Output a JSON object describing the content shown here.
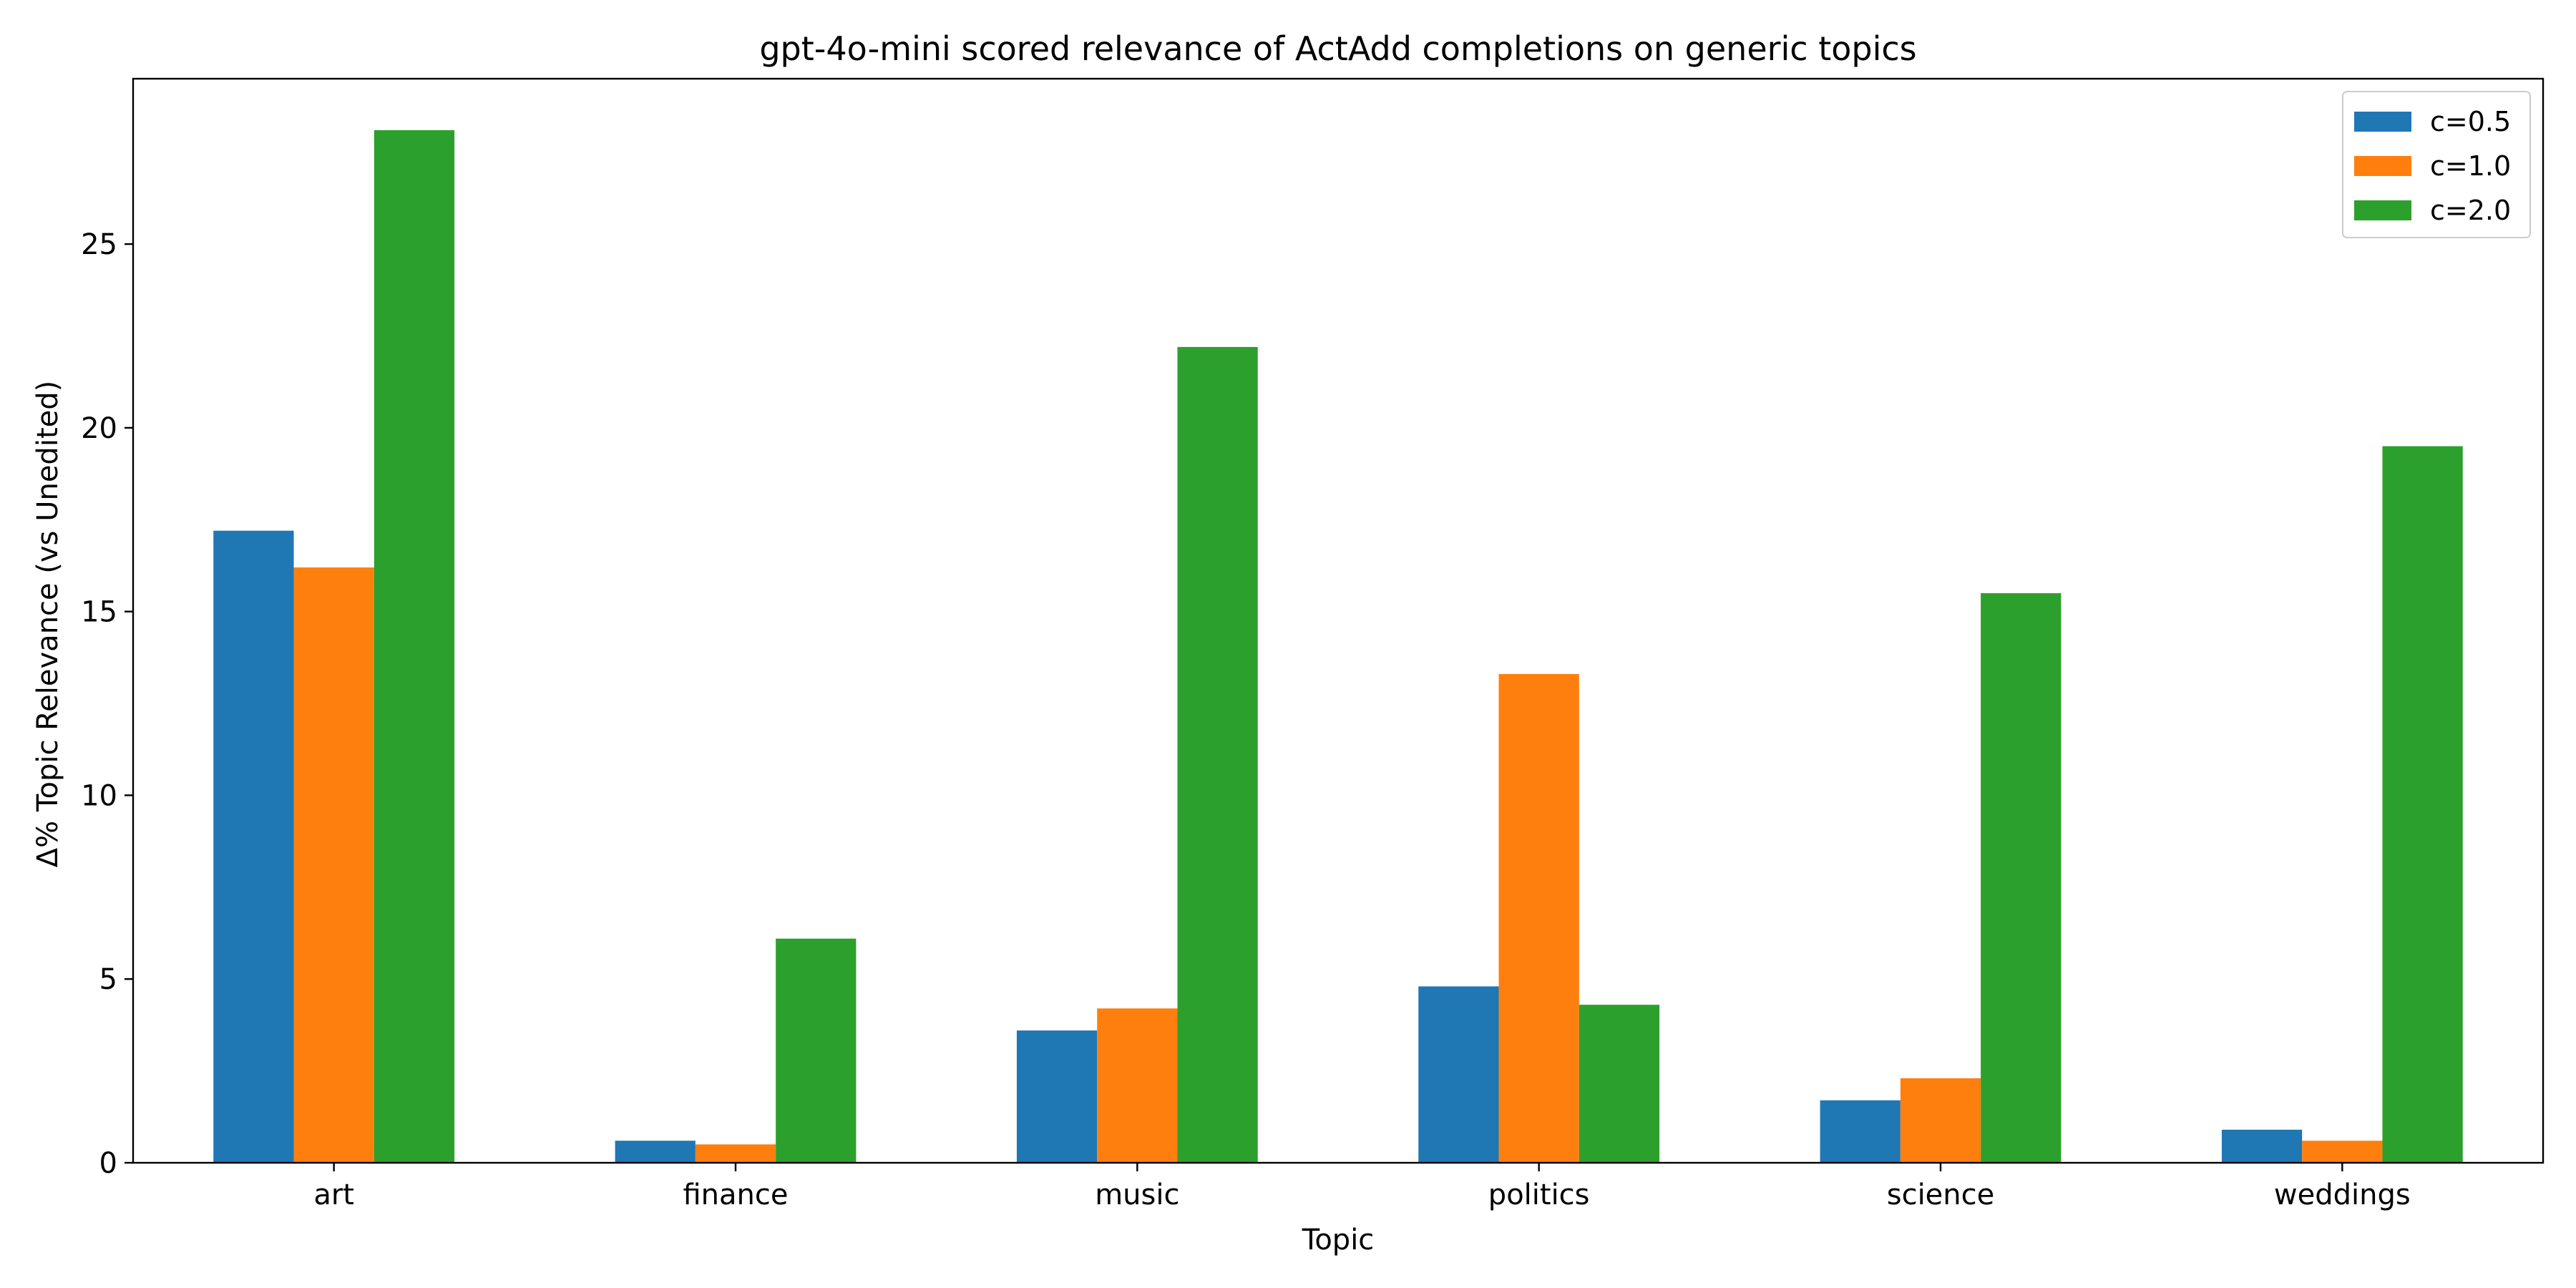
{
  "chart_data": {
    "type": "bar",
    "title": "gpt-4o-mini scored relevance of ActAdd completions on generic topics",
    "xlabel": "Topic",
    "ylabel": "Δ% Topic Relevance (vs Unedited)",
    "categories": [
      "art",
      "finance",
      "music",
      "politics",
      "science",
      "weddings"
    ],
    "series": [
      {
        "name": "c=0.5",
        "color": "#1f77b4",
        "values": [
          17.2,
          0.6,
          3.6,
          4.8,
          1.7,
          0.9
        ]
      },
      {
        "name": "c=1.0",
        "color": "#ff7f0e",
        "values": [
          16.2,
          0.5,
          4.2,
          13.3,
          2.3,
          0.6
        ]
      },
      {
        "name": "c=2.0",
        "color": "#2ca02c",
        "values": [
          28.1,
          6.1,
          22.2,
          4.3,
          15.5,
          19.5
        ]
      }
    ],
    "ylim": [
      0,
      29.5
    ],
    "yticks": [
      0,
      5,
      10,
      15,
      20,
      25
    ],
    "grid": false,
    "legend_position": "top-right"
  }
}
